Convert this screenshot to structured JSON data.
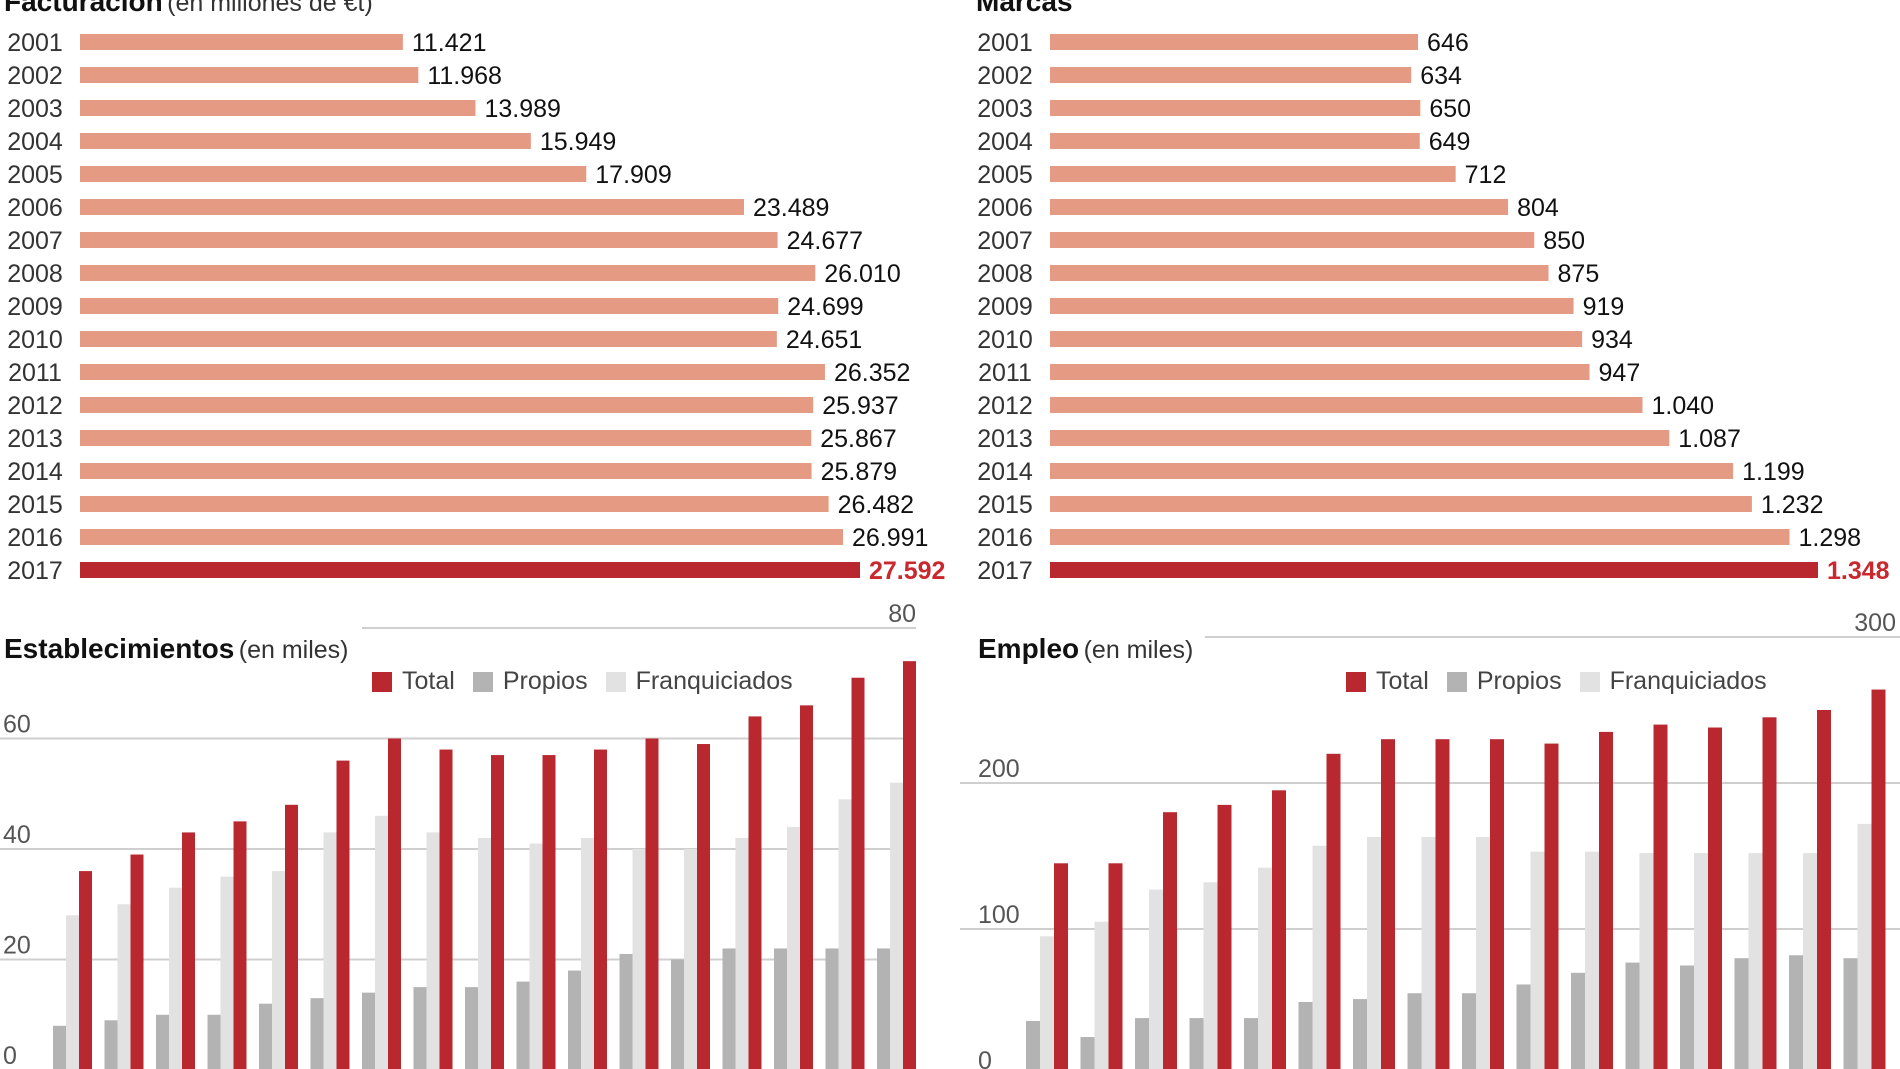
{
  "colors": {
    "bar": "#e59a84",
    "bar_highlight": "#b8282e",
    "value_highlight": "#c8282e",
    "total": "#b8282e",
    "propios": "#b3b3b3",
    "franquiciados": "#e2e2e2",
    "grid": "#cfcfcf"
  },
  "panels": {
    "facturacion": {
      "title": "Facturación",
      "subtitle": "(en millones de €t)"
    },
    "marcas": {
      "title": "Marcas",
      "subtitle": ""
    },
    "establecimientos": {
      "title": "Establecimientos",
      "subtitle": "(en miles)"
    },
    "empleo": {
      "title": "Empleo",
      "subtitle": "(en miles)"
    }
  },
  "legend": {
    "total": "Total",
    "propios": "Propios",
    "franquiciados": "Franquiciados"
  },
  "chart_data": [
    {
      "id": "facturacion",
      "type": "bar",
      "orientation": "horizontal",
      "title": "Facturación",
      "subtitle": "(en millones de €t)",
      "categories": [
        "2001",
        "2002",
        "2003",
        "2004",
        "2005",
        "2006",
        "2007",
        "2008",
        "2009",
        "2010",
        "2011",
        "2012",
        "2013",
        "2014",
        "2015",
        "2016",
        "2017"
      ],
      "values": [
        11421,
        11968,
        13989,
        15949,
        17909,
        23489,
        24677,
        26010,
        24699,
        24651,
        26352,
        25937,
        25867,
        25879,
        26482,
        26991,
        27592
      ],
      "value_labels": [
        "11.421",
        "11.968",
        "13.989",
        "15.949",
        "17.909",
        "23.489",
        "24.677",
        "26.010",
        "24.699",
        "24.651",
        "26.352",
        "25.937",
        "25.867",
        "25.879",
        "26.482",
        "26.991",
        "27.592"
      ],
      "highlight_index": 16,
      "xlim": [
        0,
        27592
      ]
    },
    {
      "id": "marcas",
      "type": "bar",
      "orientation": "horizontal",
      "title": "Marcas",
      "categories": [
        "2001",
        "2002",
        "2003",
        "2004",
        "2005",
        "2006",
        "2007",
        "2008",
        "2009",
        "2010",
        "2011",
        "2012",
        "2013",
        "2014",
        "2015",
        "2016",
        "2017"
      ],
      "values": [
        646,
        634,
        650,
        649,
        712,
        804,
        850,
        875,
        919,
        934,
        947,
        1040,
        1087,
        1199,
        1232,
        1298,
        1348
      ],
      "value_labels": [
        "646",
        "634",
        "650",
        "649",
        "712",
        "804",
        "850",
        "875",
        "919",
        "934",
        "947",
        "1.040",
        "1.087",
        "1.199",
        "1.232",
        "1.298",
        "1.348"
      ],
      "highlight_index": 16,
      "xlim": [
        0,
        1348
      ]
    },
    {
      "id": "establecimientos",
      "type": "bar",
      "title": "Establecimientos",
      "subtitle": "(en miles)",
      "ylim": [
        0,
        80
      ],
      "yticks": [
        0,
        20,
        40,
        60,
        80
      ],
      "ytick_labels": [
        "0",
        "20",
        "40",
        "60",
        "80"
      ],
      "grid": true,
      "legend_position": "top",
      "series": [
        {
          "name": "Total",
          "values": [
            36,
            39,
            43,
            45,
            48,
            56,
            60,
            58,
            57,
            57,
            58,
            60,
            59,
            64,
            66,
            71,
            74
          ]
        },
        {
          "name": "Propios",
          "values": [
            8,
            9,
            10,
            10,
            12,
            13,
            14,
            15,
            15,
            16,
            18,
            21,
            20,
            22,
            22,
            22,
            22
          ]
        },
        {
          "name": "Franquiciados",
          "values": [
            28,
            30,
            33,
            35,
            36,
            43,
            46,
            43,
            42,
            41,
            42,
            40,
            40,
            42,
            44,
            49,
            52
          ]
        }
      ]
    },
    {
      "id": "empleo",
      "type": "bar",
      "title": "Empleo",
      "subtitle": "(en miles)",
      "ylim": [
        0,
        300
      ],
      "yticks": [
        0,
        100,
        200,
        300
      ],
      "ytick_labels": [
        "0",
        "100",
        "200",
        "300"
      ],
      "grid": true,
      "legend_position": "top",
      "series": [
        {
          "name": "Total",
          "values": [
            145,
            145,
            180,
            185,
            195,
            220,
            230,
            230,
            230,
            227,
            235,
            240,
            238,
            245,
            250,
            264
          ]
        },
        {
          "name": "Propios",
          "values": [
            37,
            26,
            39,
            39,
            39,
            50,
            52,
            56,
            56,
            62,
            70,
            77,
            75,
            80,
            82,
            80
          ]
        },
        {
          "name": "Franquiciados",
          "values": [
            95,
            105,
            127,
            132,
            142,
            157,
            163,
            163,
            163,
            153,
            153,
            152,
            152,
            152,
            152,
            172
          ]
        }
      ]
    }
  ]
}
